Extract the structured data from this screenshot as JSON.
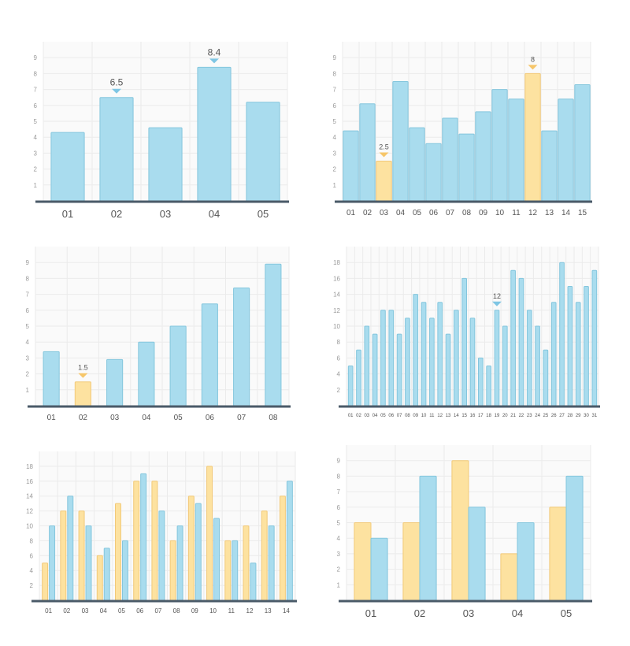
{
  "colors": {
    "blue": "#a9dcee",
    "blue_stroke": "#84c6dd",
    "yellow": "#fde2a0",
    "yellow_stroke": "#f2c978",
    "axis": "#4a5a68"
  },
  "chart_data": [
    {
      "type": "bar",
      "categories": [
        "01",
        "02",
        "03",
        "04",
        "05"
      ],
      "series": [
        {
          "values": [
            4.3,
            6.5,
            4.6,
            8.4,
            6.2
          ]
        }
      ],
      "yticks": [
        1,
        2,
        3,
        4,
        5,
        6,
        7,
        8,
        9
      ],
      "ylim": [
        0,
        10
      ],
      "grid": true,
      "annotations": [
        {
          "category": "02",
          "label": "6.5"
        },
        {
          "category": "04",
          "label": "8.4"
        }
      ],
      "highlight": []
    },
    {
      "type": "bar",
      "categories": [
        "01",
        "02",
        "03",
        "04",
        "05",
        "06",
        "07",
        "08",
        "09",
        "10",
        "11",
        "12",
        "13",
        "14",
        "15"
      ],
      "series": [
        {
          "values": [
            4.4,
            6.1,
            2.5,
            7.5,
            4.6,
            3.6,
            5.2,
            4.2,
            5.6,
            7.0,
            6.4,
            8.0,
            4.4,
            6.4,
            7.3
          ]
        }
      ],
      "yticks": [
        1,
        2,
        3,
        4,
        5,
        6,
        7,
        8,
        9
      ],
      "ylim": [
        0,
        10
      ],
      "grid": true,
      "annotations": [
        {
          "category": "03",
          "label": "2.5"
        },
        {
          "category": "12",
          "label": "8"
        }
      ],
      "highlight": [
        "03",
        "12"
      ]
    },
    {
      "type": "bar",
      "categories": [
        "01",
        "02",
        "03",
        "04",
        "05",
        "06",
        "07",
        "08"
      ],
      "series": [
        {
          "values": [
            3.4,
            1.5,
            2.9,
            4.0,
            5.0,
            6.4,
            7.4,
            8.9
          ]
        }
      ],
      "yticks": [
        1,
        2,
        3,
        4,
        5,
        6,
        7,
        8,
        9
      ],
      "ylim": [
        0,
        10
      ],
      "grid": true,
      "annotations": [
        {
          "category": "02",
          "label": "1.5"
        }
      ],
      "highlight": [
        "02"
      ]
    },
    {
      "type": "bar",
      "categories": [
        "01",
        "02",
        "03",
        "04",
        "05",
        "06",
        "07",
        "08",
        "09",
        "10",
        "11",
        "12",
        "13",
        "14",
        "15",
        "16",
        "17",
        "18",
        "19",
        "20",
        "21",
        "22",
        "23",
        "24",
        "25",
        "26",
        "27",
        "28",
        "29",
        "30",
        "31"
      ],
      "series": [
        {
          "values": [
            5,
            7,
            10,
            9,
            12,
            12,
            9,
            11,
            14,
            13,
            11,
            13,
            9,
            12,
            16,
            11,
            6,
            5,
            12,
            10,
            17,
            16,
            12,
            10,
            7,
            13,
            18,
            15,
            13,
            15,
            17
          ]
        }
      ],
      "yticks": [
        2,
        4,
        6,
        8,
        10,
        12,
        14,
        16,
        18
      ],
      "ylim": [
        0,
        20
      ],
      "grid": true,
      "annotations": [
        {
          "category": "19",
          "label": "12"
        }
      ],
      "highlight": []
    },
    {
      "type": "bar",
      "categories": [
        "01",
        "02",
        "03",
        "04",
        "05",
        "06",
        "07",
        "08",
        "09",
        "10",
        "11",
        "12",
        "13",
        "14"
      ],
      "series": [
        {
          "values": [
            5,
            12,
            12,
            6,
            13,
            16,
            16,
            8,
            14,
            18,
            8,
            10,
            12,
            14
          ]
        },
        {
          "values": [
            10,
            14,
            10,
            7,
            8,
            17,
            12,
            10,
            13,
            11,
            8,
            5,
            10,
            16
          ]
        }
      ],
      "yticks": [
        2,
        4,
        6,
        8,
        10,
        12,
        14,
        16,
        18
      ],
      "ylim": [
        0,
        20
      ],
      "grid": true,
      "annotations": [],
      "highlight": []
    },
    {
      "type": "bar",
      "categories": [
        "01",
        "02",
        "03",
        "04",
        "05"
      ],
      "series": [
        {
          "values": [
            5,
            5,
            9,
            3,
            6
          ]
        },
        {
          "values": [
            4,
            8,
            6,
            5,
            8
          ]
        }
      ],
      "yticks": [
        1,
        2,
        3,
        4,
        5,
        6,
        7,
        8,
        9
      ],
      "ylim": [
        0,
        10
      ],
      "grid": true,
      "annotations": [],
      "highlight": []
    }
  ]
}
